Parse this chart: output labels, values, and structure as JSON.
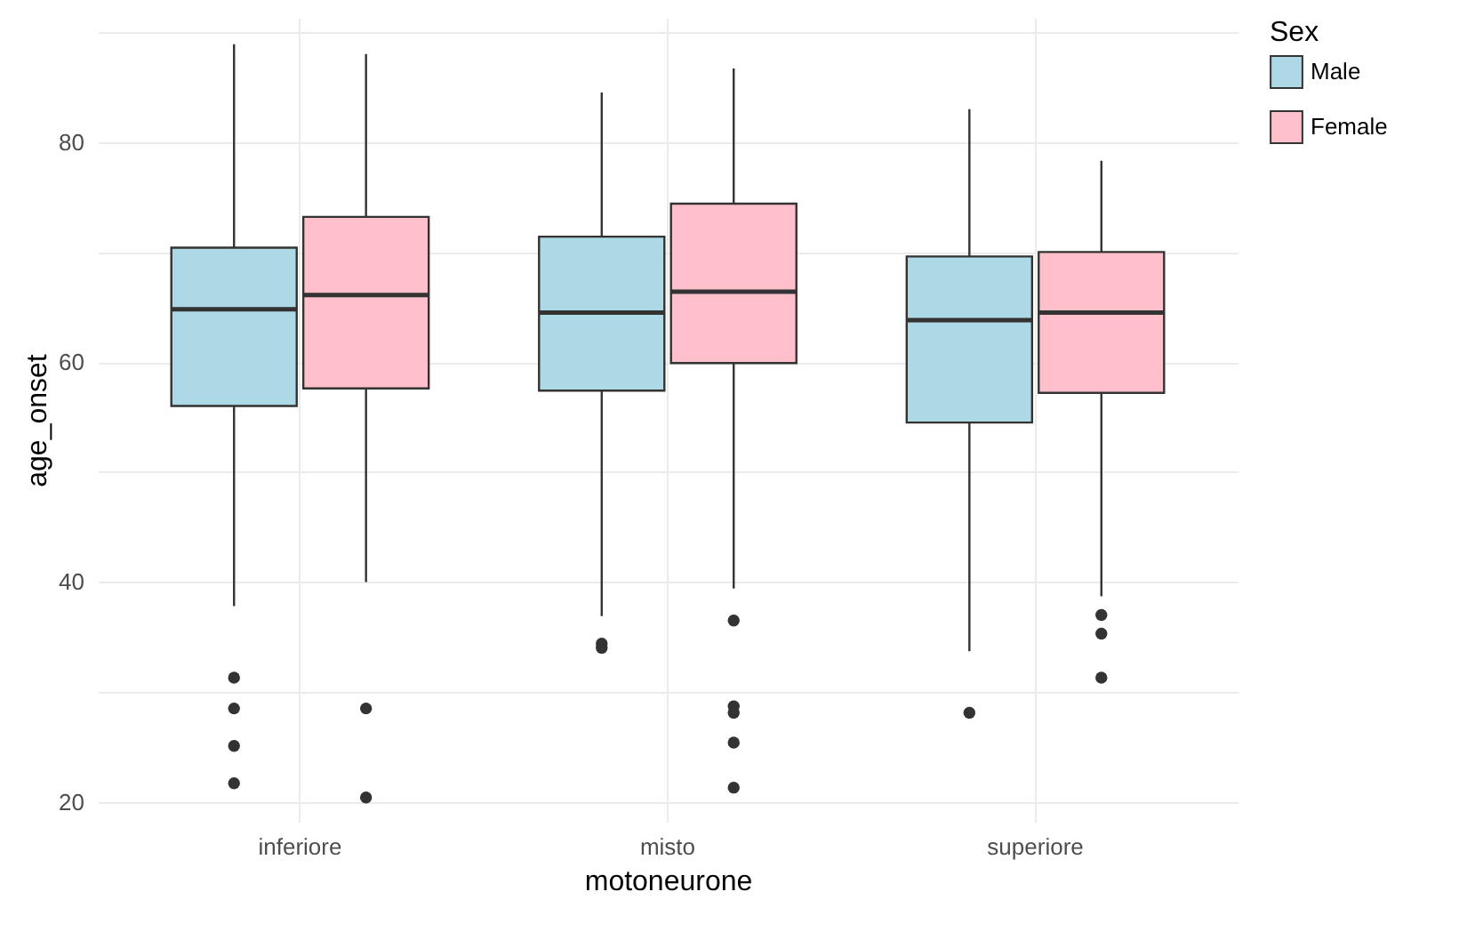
{
  "chart_data": {
    "type": "box",
    "xlabel": "motoneurone",
    "ylabel": "age_onset",
    "legend_title": "Sex",
    "legend": "right",
    "grid": true,
    "categories": [
      "inferiore",
      "misto",
      "superiore"
    ],
    "ylim": [
      18.2,
      91.3
    ],
    "yticks": [
      20,
      {
        "value": 30,
        "label": null
      },
      40,
      {
        "value": 50,
        "label": null
      },
      60,
      {
        "value": 70,
        "label": null
      },
      80,
      {
        "value": 90,
        "label": null
      }
    ],
    "series": [
      {
        "name": "Male",
        "color": "#add8e6",
        "boxes": [
          {
            "low": 37.8,
            "q1": 56.0,
            "median": 64.8,
            "q3": 70.4,
            "high": 88.9,
            "outliers": [
              31.3,
              28.5,
              25.1,
              21.7
            ]
          },
          {
            "low": 36.9,
            "q1": 57.4,
            "median": 64.5,
            "q3": 71.4,
            "high": 84.5,
            "outliers": [
              34.4,
              34.0
            ]
          },
          {
            "low": 33.7,
            "q1": 54.5,
            "median": 63.8,
            "q3": 69.6,
            "high": 83.0,
            "outliers": [
              28.1
            ]
          }
        ]
      },
      {
        "name": "Female",
        "color": "#ffc0cb",
        "boxes": [
          {
            "low": 40.0,
            "q1": 57.6,
            "median": 66.1,
            "q3": 73.2,
            "high": 88.0,
            "outliers": [
              28.5,
              20.4
            ]
          },
          {
            "low": 39.4,
            "q1": 59.9,
            "median": 66.4,
            "q3": 74.4,
            "high": 86.7,
            "outliers": [
              36.5,
              28.7,
              28.1,
              25.4,
              21.3
            ]
          },
          {
            "low": 38.7,
            "q1": 57.2,
            "median": 64.5,
            "q3": 70.0,
            "high": 78.3,
            "outliers": [
              37.0,
              35.3,
              31.3
            ]
          }
        ]
      }
    ]
  }
}
